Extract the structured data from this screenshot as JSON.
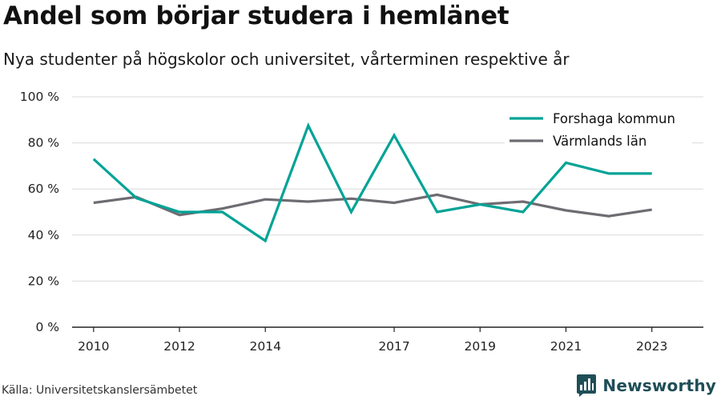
{
  "header": {
    "title": "Andel som börjar studera i hemlänet",
    "subtitle": "Nya studenter på högskolor och universitet, vårterminen respektive år"
  },
  "footer": {
    "source": "Källa: Universitetskanslersämbetet",
    "brand": "Newsworthy",
    "brand_color": "#1f4e57",
    "brand_icon": "bar-chart-logo-icon"
  },
  "chart_data": {
    "type": "line",
    "x": [
      2010,
      2011,
      2012,
      2013,
      2014,
      2015,
      2016,
      2017,
      2018,
      2019,
      2020,
      2021,
      2022,
      2023
    ],
    "x_tick_labels": [
      "2010",
      "2012",
      "2014",
      "2017",
      "2019",
      "2021",
      "2023"
    ],
    "y_tick_labels": [
      "0 %",
      "20 %",
      "40 %",
      "60 %",
      "80 %",
      "100 %"
    ],
    "xlim": [
      2009.5,
      2024.2
    ],
    "ylim": [
      0,
      100
    ],
    "grid": true,
    "legend_position": "top-right",
    "series": [
      {
        "name": "Forshaga kommun",
        "color": "#00a396",
        "values": [
          73,
          56,
          50,
          50,
          37.5,
          87.5,
          50,
          83.3,
          50,
          53.3,
          50,
          71.4,
          66.7,
          66.7
        ]
      },
      {
        "name": "Värmlands län",
        "color": "#6e6c72",
        "values": [
          54,
          56.5,
          48.7,
          51.5,
          55.5,
          54.5,
          55.8,
          54,
          57.5,
          53.3,
          54.5,
          50.7,
          48.2,
          51
        ]
      }
    ]
  }
}
